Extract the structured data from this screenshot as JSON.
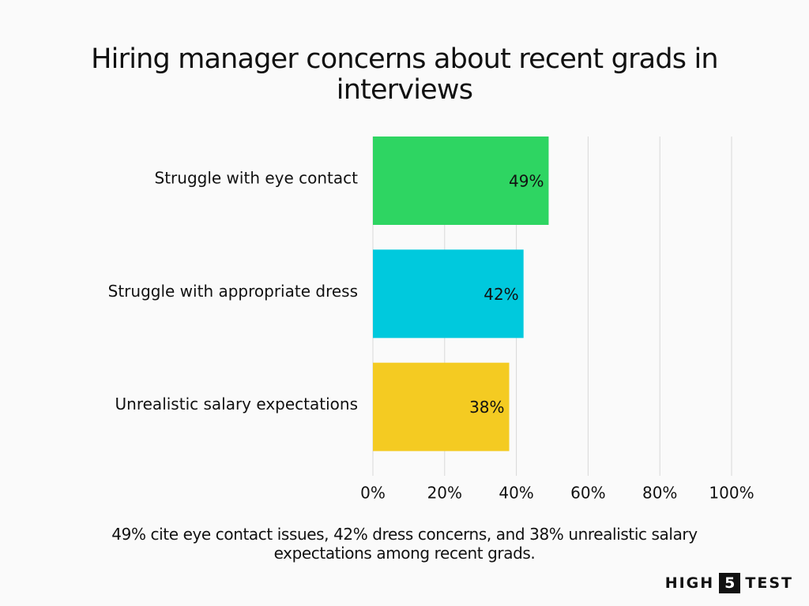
{
  "chart_data": {
    "type": "hbar",
    "title": "Hiring manager concerns about recent grads in interviews",
    "categories": [
      "Struggle with eye contact",
      "Struggle with appropriate dress",
      "Unrealistic salary expectations"
    ],
    "values": [
      49,
      42,
      38
    ],
    "value_labels": [
      "49%",
      "42%",
      "38%"
    ],
    "colors": [
      "#2ed562",
      "#00c9dd",
      "#f4cb22"
    ],
    "xlim": [
      0,
      100
    ],
    "xticks": [
      {
        "value": 0,
        "label": "0%"
      },
      {
        "value": 20,
        "label": "20%"
      },
      {
        "value": 40,
        "label": "40%"
      },
      {
        "value": 60,
        "label": "60%"
      },
      {
        "value": 80,
        "label": "80%"
      },
      {
        "value": 100,
        "label": "100%"
      }
    ],
    "grid": true,
    "caption": "49% cite eye contact issues, 42% dress concerns, and 38% unrealistic salary expectations among recent grads."
  },
  "logo": [
    "HIGH",
    "5",
    "TEST"
  ]
}
